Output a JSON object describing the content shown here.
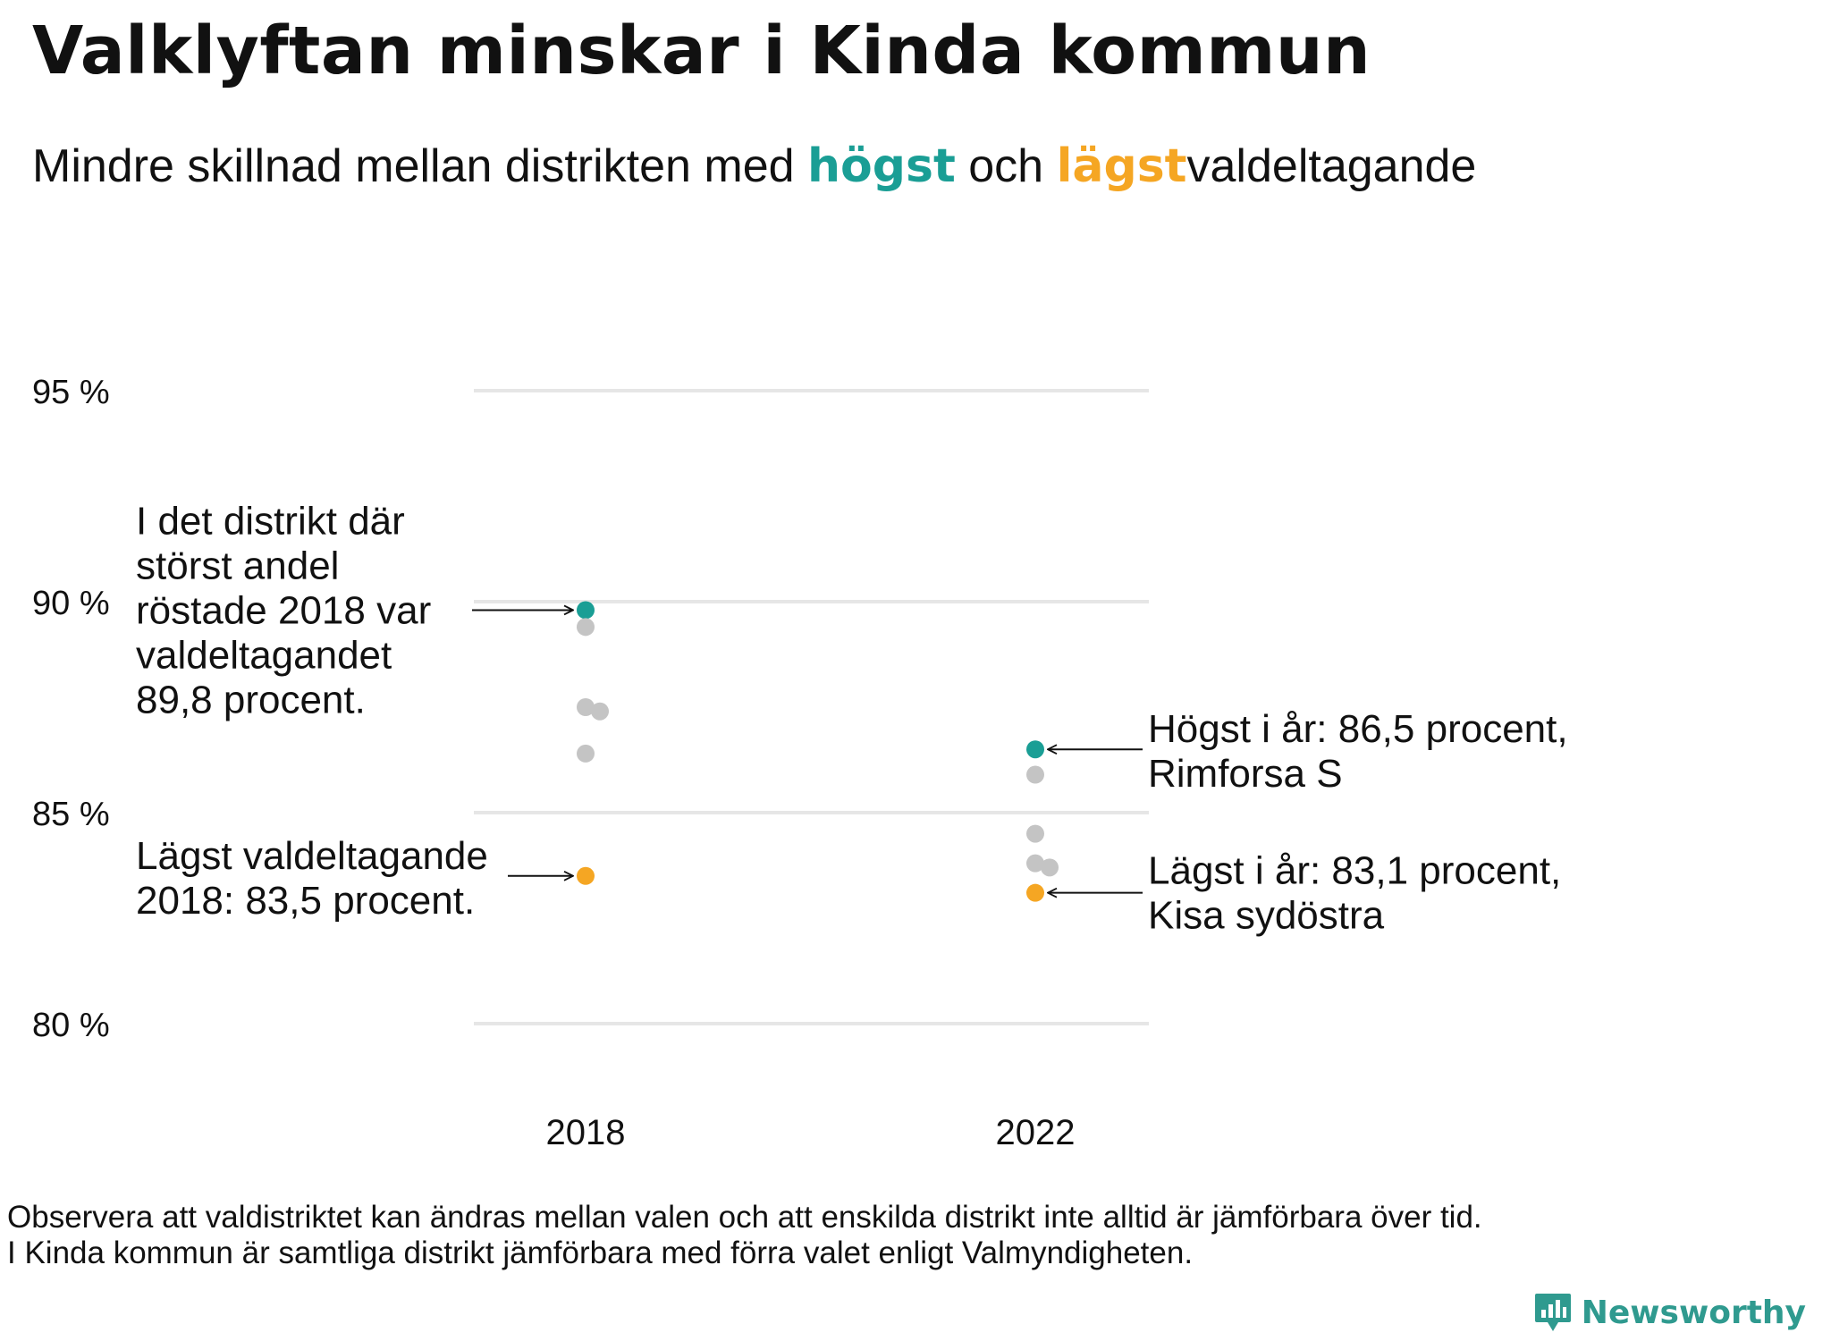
{
  "title": "Valklyftan minskar i Kinda kommun",
  "subtitle": {
    "part1": "Mindre  skillnad  mellan  distrikten  med",
    "highest_word": "högst",
    "middle": "och",
    "lowest_word": "lägst",
    "part2": "valdeltagande"
  },
  "colors": {
    "highest": "#1a9e95",
    "lowest": "#f5a623",
    "other": "#c4c4c4",
    "grid": "#e6e6e6",
    "text": "#111111"
  },
  "chart_data": {
    "type": "scatter",
    "ylabel": "",
    "xlabel": "",
    "ylim": [
      80,
      95
    ],
    "yticks": [
      {
        "value": 95,
        "label": "95 %"
      },
      {
        "value": 90,
        "label": "90 %"
      },
      {
        "value": 85,
        "label": "85 %"
      },
      {
        "value": 80,
        "label": "80 %"
      }
    ],
    "categories": [
      "2018",
      "2022"
    ],
    "series": [
      {
        "name": "2018",
        "points": [
          {
            "value": 89.8,
            "role": "highest"
          },
          {
            "value": 89.4,
            "role": "other"
          },
          {
            "value": 87.5,
            "role": "other"
          },
          {
            "value": 87.4,
            "role": "other"
          },
          {
            "value": 86.4,
            "role": "other"
          },
          {
            "value": 83.5,
            "role": "lowest"
          }
        ]
      },
      {
        "name": "2022",
        "points": [
          {
            "value": 86.5,
            "role": "highest"
          },
          {
            "value": 85.9,
            "role": "other"
          },
          {
            "value": 84.5,
            "role": "other"
          },
          {
            "value": 83.8,
            "role": "other"
          },
          {
            "value": 83.7,
            "role": "other"
          },
          {
            "value": 83.1,
            "role": "lowest"
          }
        ]
      }
    ],
    "annotations": {
      "high_2018": [
        "I det distrikt där",
        "störst andel",
        "röstade 2018 var",
        "valdeltagandet",
        "89,8 procent."
      ],
      "low_2018": [
        "Lägst valdeltagande",
        "2018: 83,5 procent."
      ],
      "high_2022": [
        "Högst i år: 86,5 procent,",
        "Rimforsa S"
      ],
      "low_2022": [
        "Lägst i år: 83,1 procent,",
        "Kisa sydöstra"
      ]
    }
  },
  "footnote": {
    "line1": "Observera att valdistriktet kan ändras mellan valen och att enskilda distrikt inte alltid är jämförbara över tid.",
    "line2": "I Kinda kommun är samtliga distrikt jämförbara med förra valet enligt Valmyndigheten."
  },
  "brand": {
    "name": "Newsworthy",
    "icon": "bar-chart-speech-bubble-icon"
  }
}
